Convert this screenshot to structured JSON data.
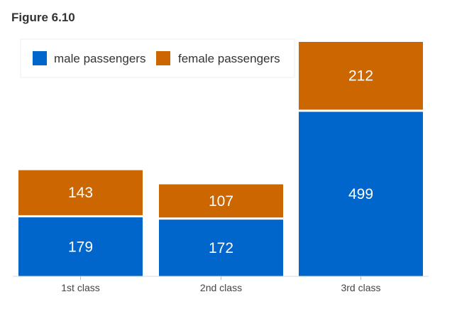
{
  "figure": {
    "title": "Figure 6.10"
  },
  "chart_data": {
    "type": "bar",
    "stacked": true,
    "title": "",
    "xlabel": "",
    "ylabel": "",
    "categories": [
      "1st class",
      "2nd class",
      "3rd class"
    ],
    "series": [
      {
        "name": "male passengers",
        "color": "#0066cc",
        "values": [
          179,
          172,
          499
        ]
      },
      {
        "name": "female passengers",
        "color": "#cc6600",
        "values": [
          143,
          107,
          212
        ]
      }
    ],
    "ylim": [
      0,
      711
    ],
    "grid": false,
    "legend_position": "top-left",
    "data_labels": true
  }
}
